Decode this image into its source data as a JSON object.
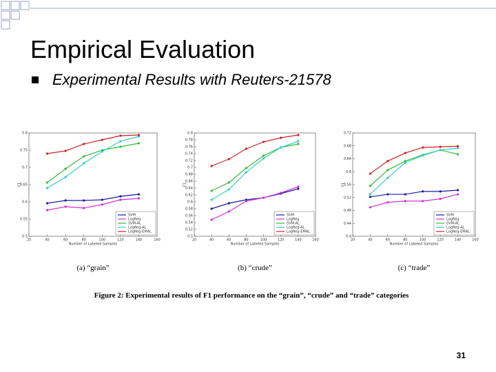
{
  "slide": {
    "title": "Empirical Evaluation",
    "bullet": "Experimental Results with Reuters-21578",
    "figure_caption": "Figure 2: Experimental results of F1 performance on the “grain”, “crude” and “trade” categories",
    "page_number": "31"
  },
  "chart_data": [
    {
      "type": "line",
      "caption": "(a) “grain”",
      "xlabel": "Number of Labeled Samples",
      "ylabel": "F1",
      "x": [
        40,
        60,
        80,
        100,
        120,
        140
      ],
      "xlim": [
        20,
        160
      ],
      "xticks": [
        20,
        40,
        60,
        80,
        100,
        120,
        140,
        160
      ],
      "ylim": [
        0.5,
        0.8
      ],
      "yticks": [
        0.5,
        0.55,
        0.6,
        0.65,
        0.7,
        0.75,
        0.8
      ],
      "series": [
        {
          "name": "SVM",
          "color": "#1a1aa0",
          "values": [
            0.596,
            0.604,
            0.604,
            0.606,
            0.616,
            0.622
          ]
        },
        {
          "name": "LogReg",
          "color": "#cc33cc",
          "values": [
            0.576,
            0.586,
            0.582,
            0.592,
            0.606,
            0.61
          ]
        },
        {
          "name": "SVM-AL",
          "color": "#33bb33",
          "values": [
            0.656,
            0.696,
            0.732,
            0.75,
            0.76,
            0.77
          ]
        },
        {
          "name": "LogReg-AL",
          "color": "#33cccc",
          "values": [
            0.64,
            0.672,
            0.712,
            0.746,
            0.776,
            0.79
          ]
        },
        {
          "name": "LogReg-EMAL",
          "color": "#cc2222",
          "values": [
            0.74,
            0.748,
            0.768,
            0.78,
            0.792,
            0.794
          ]
        }
      ]
    },
    {
      "type": "line",
      "caption": "(b) “crude”",
      "xlabel": "Number of Labeled Samples",
      "ylabel": "F1",
      "x": [
        40,
        60,
        80,
        100,
        120,
        140
      ],
      "xlim": [
        20,
        160
      ],
      "xticks": [
        20,
        40,
        60,
        80,
        100,
        120,
        140,
        160
      ],
      "ylim": [
        0.5,
        0.8
      ],
      "yticks": [
        0.5,
        0.52,
        0.54,
        0.56,
        0.58,
        0.6,
        0.62,
        0.64,
        0.66,
        0.68,
        0.7,
        0.72,
        0.74,
        0.76,
        0.78,
        0.8
      ],
      "series": [
        {
          "name": "SVM",
          "color": "#1a1aa0",
          "values": [
            0.58,
            0.596,
            0.606,
            0.612,
            0.624,
            0.638
          ]
        },
        {
          "name": "LogReg",
          "color": "#cc33cc",
          "values": [
            0.548,
            0.572,
            0.602,
            0.612,
            0.626,
            0.644
          ]
        },
        {
          "name": "SVM-AL",
          "color": "#33bb33",
          "values": [
            0.632,
            0.656,
            0.698,
            0.734,
            0.758,
            0.768
          ]
        },
        {
          "name": "LogReg-AL",
          "color": "#33cccc",
          "values": [
            0.606,
            0.636,
            0.686,
            0.726,
            0.758,
            0.776
          ]
        },
        {
          "name": "LogReg-EMAL",
          "color": "#cc2222",
          "values": [
            0.704,
            0.724,
            0.754,
            0.774,
            0.786,
            0.794
          ]
        }
      ]
    },
    {
      "type": "line",
      "caption": "(c) “trade”",
      "xlabel": "Number of Labeled Samples",
      "ylabel": "F1",
      "x": [
        40,
        60,
        80,
        100,
        120,
        140
      ],
      "xlim": [
        20,
        160
      ],
      "xticks": [
        20,
        40,
        60,
        80,
        100,
        120,
        140,
        160
      ],
      "ylim": [
        0.4,
        0.72
      ],
      "yticks": [
        0.4,
        0.44,
        0.48,
        0.52,
        0.56,
        0.6,
        0.64,
        0.68,
        0.72
      ],
      "series": [
        {
          "name": "SVM",
          "color": "#1a1aa0",
          "values": [
            0.522,
            0.53,
            0.53,
            0.539,
            0.539,
            0.543
          ]
        },
        {
          "name": "LogReg",
          "color": "#cc33cc",
          "values": [
            0.49,
            0.505,
            0.509,
            0.509,
            0.516,
            0.53
          ]
        },
        {
          "name": "SVM-AL",
          "color": "#33bb33",
          "values": [
            0.556,
            0.605,
            0.633,
            0.652,
            0.667,
            0.654
          ]
        },
        {
          "name": "LogReg-AL",
          "color": "#33cccc",
          "values": [
            0.53,
            0.581,
            0.628,
            0.65,
            0.667,
            0.673
          ]
        },
        {
          "name": "LogReg-EMAL",
          "color": "#cc2222",
          "values": [
            0.594,
            0.633,
            0.658,
            0.675,
            0.677,
            0.679
          ]
        }
      ]
    }
  ]
}
